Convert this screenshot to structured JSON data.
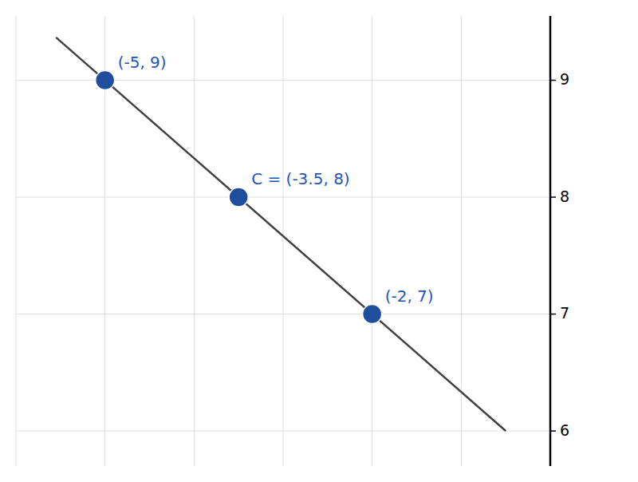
{
  "chart_data": {
    "type": "scatter",
    "series": [
      {
        "type": "line",
        "color": "#404040",
        "x": [
          -5.55,
          -0.5
        ],
        "values": [
          9.366666666666667,
          6
        ]
      },
      {
        "type": "scatter",
        "color": "#1f4e9e",
        "x": [
          -5,
          -3.5,
          -2
        ],
        "values": [
          9,
          8,
          7
        ]
      }
    ],
    "annotations": [
      {
        "text": "(-5, 9)",
        "x": -5,
        "y": 9,
        "color": "#2255bb"
      },
      {
        "text": "C = (-3.5, 8)",
        "x": -3.5,
        "y": 8,
        "color": "#2255bb"
      },
      {
        "text": "(-2, 7)",
        "x": -2,
        "y": 7,
        "color": "#2255bb"
      }
    ],
    "xlim": [
      -6,
      0
    ],
    "ylim": [
      5.7,
      9.55
    ],
    "xticks": [
      -6,
      -5,
      -4,
      -3,
      -2,
      -1,
      0
    ],
    "yticks": [
      6,
      7,
      8,
      9
    ],
    "grid": true,
    "tick_labels": "y"
  }
}
